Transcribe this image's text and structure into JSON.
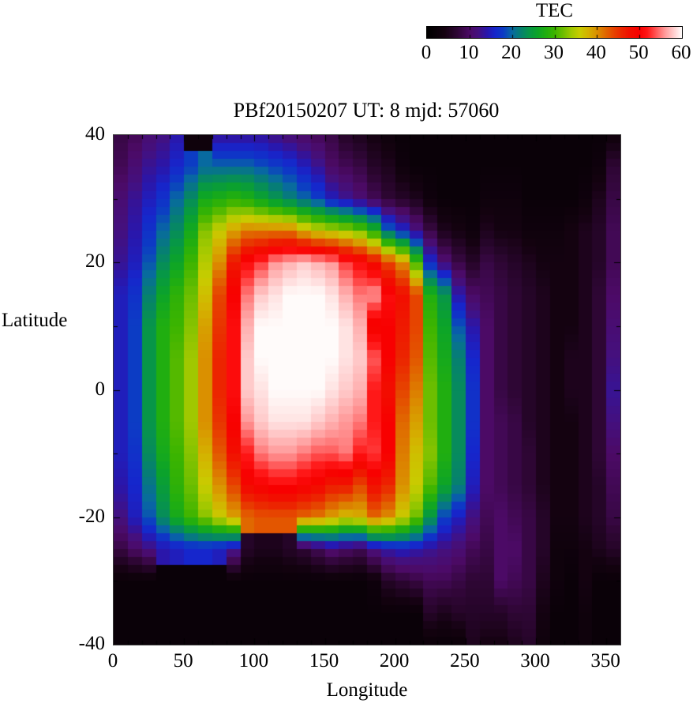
{
  "colorbar": {
    "title": "TEC",
    "min": 0,
    "max": 60,
    "tick_values": [
      0,
      10,
      20,
      30,
      40,
      50,
      60
    ],
    "tick_labels": [
      "0",
      "10",
      "20",
      "30",
      "40",
      "50",
      "60"
    ]
  },
  "plot": {
    "title": "PBf20150207  UT: 8  mjd: 57060",
    "xlabel": "Longitude",
    "ylabel": "Latitude"
  },
  "chart_data": {
    "type": "heatmap",
    "title": "PBf20150207  UT: 8  mjd: 57060",
    "xlabel": "Longitude",
    "ylabel": "Latitude",
    "value_name": "TEC",
    "xlim": [
      0,
      360
    ],
    "ylim": [
      -40,
      40
    ],
    "zlim": [
      0,
      60
    ],
    "grid": "off",
    "legend_position": "top-right colorbar",
    "x_tick_values": [
      0,
      50,
      100,
      150,
      200,
      250,
      300,
      350
    ],
    "x_tick_labels": [
      "0",
      "50",
      "100",
      "150",
      "200",
      "250",
      "300",
      "350"
    ],
    "y_tick_values": [
      40,
      20,
      0,
      -20,
      -40
    ],
    "y_tick_labels": [
      "40",
      "20",
      "0",
      "-20",
      "-40"
    ],
    "minor_tick_step_x": 10,
    "minor_tick_step_y": 10,
    "lon_start": 0,
    "lon_step": 10,
    "lats": [
      40,
      35,
      30,
      25,
      20,
      15,
      10,
      5,
      0,
      -5,
      -10,
      -15,
      -20,
      -25,
      -30,
      -35,
      -40
    ],
    "tec_columns": [
      [
        8,
        9,
        11,
        12,
        13,
        15,
        15,
        15,
        15,
        15,
        15,
        14,
        12,
        8,
        2,
        2,
        2
      ],
      [
        9,
        11,
        13,
        14,
        15,
        17,
        18,
        18,
        18,
        18,
        17,
        16,
        15,
        10,
        2,
        2,
        2
      ],
      [
        11,
        13,
        15,
        17,
        19,
        22,
        24,
        24,
        24,
        24,
        23,
        21,
        19,
        12,
        2,
        2,
        2
      ],
      [
        12,
        14,
        17,
        20,
        23,
        26,
        28,
        28,
        28,
        28,
        27,
        25,
        23,
        14,
        2,
        2,
        2
      ],
      [
        14,
        16,
        20,
        23,
        26,
        29,
        30,
        31,
        31,
        31,
        30,
        29,
        27,
        15,
        2,
        2,
        2
      ],
      [
        3,
        18,
        23,
        27,
        30,
        32,
        33,
        34,
        34,
        34,
        33,
        32,
        30,
        16,
        2,
        2,
        2
      ],
      [
        3,
        20,
        27,
        33,
        35,
        37,
        39,
        40,
        40,
        40,
        38,
        36,
        33,
        16,
        2,
        2,
        2
      ],
      [
        13,
        20,
        28,
        36,
        40,
        44,
        45,
        46,
        46,
        45,
        43,
        40,
        36,
        15,
        2,
        2,
        2
      ],
      [
        13,
        20,
        29,
        39,
        47,
        50,
        51,
        51,
        51,
        50,
        48,
        44,
        39,
        13,
        2,
        2,
        2
      ],
      [
        13,
        20,
        28,
        41,
        51,
        55,
        57,
        58,
        58,
        56,
        52,
        49,
        42,
        6,
        2,
        2,
        2
      ],
      [
        13,
        19,
        26,
        41,
        53,
        58,
        60,
        60,
        59,
        58,
        55,
        50,
        43,
        5,
        2,
        2,
        2
      ],
      [
        12,
        18,
        24,
        41,
        56,
        59,
        60,
        60,
        60,
        59,
        56,
        51,
        43,
        5,
        2,
        2,
        2
      ],
      [
        11,
        17,
        22,
        41,
        57,
        60,
        60,
        60,
        60,
        59,
        56,
        51,
        43,
        6,
        2,
        2,
        2
      ],
      [
        10,
        15,
        20,
        38,
        58,
        60,
        60,
        60,
        60,
        59,
        55,
        50,
        42,
        7,
        2,
        2,
        2
      ],
      [
        9,
        13,
        18,
        36,
        57,
        60,
        60,
        60,
        60,
        58,
        54,
        49,
        41,
        9,
        2,
        2,
        2
      ],
      [
        8,
        10,
        15,
        35,
        56,
        59,
        60,
        60,
        59,
        57,
        54,
        47,
        39,
        11,
        2,
        2,
        2
      ],
      [
        6,
        9,
        13,
        34,
        53,
        57,
        59,
        59,
        58,
        56,
        55,
        47,
        37,
        10,
        2,
        2,
        2
      ],
      [
        5,
        8,
        11,
        32,
        51,
        55,
        57,
        58,
        57,
        55,
        52,
        44,
        38,
        9,
        2,
        2,
        2
      ],
      [
        4,
        6,
        9,
        28,
        48,
        56,
        49,
        54,
        52,
        52,
        53,
        48,
        42,
        12,
        3,
        2,
        2
      ],
      [
        3,
        5,
        7,
        20,
        44,
        51,
        50,
        50,
        48,
        50,
        50,
        46,
        40,
        14,
        6,
        2,
        2
      ],
      [
        2,
        3,
        6,
        16,
        40,
        48,
        47,
        46,
        44,
        42,
        41,
        40,
        36,
        15,
        7,
        2,
        2
      ],
      [
        2,
        2,
        5,
        12,
        30,
        44,
        44,
        43,
        41,
        39,
        37,
        36,
        32,
        14,
        8,
        2,
        2
      ],
      [
        2,
        2,
        3,
        8,
        16,
        28,
        30,
        31,
        32,
        32,
        33,
        31,
        24,
        13,
        9,
        6,
        2
      ],
      [
        2,
        2,
        2,
        5,
        11,
        24,
        26,
        27,
        28,
        28,
        28,
        26,
        18,
        12,
        9,
        5,
        2
      ],
      [
        2,
        2,
        2,
        4,
        8,
        14,
        19,
        22,
        23,
        23,
        23,
        22,
        15,
        11,
        8,
        6,
        2
      ],
      [
        2,
        2,
        2,
        3,
        6,
        10,
        14,
        16,
        17,
        17,
        16,
        15,
        12,
        9,
        7,
        6,
        5
      ],
      [
        2,
        2,
        3,
        5,
        8,
        9,
        10,
        10,
        10,
        10,
        10,
        10,
        9,
        8,
        7,
        6,
        4
      ],
      [
        2,
        2,
        3,
        4,
        7,
        8,
        8,
        8,
        8,
        9,
        9,
        9,
        10,
        10,
        10,
        6,
        4
      ],
      [
        2,
        2,
        3,
        4,
        6,
        7,
        7,
        7,
        7,
        8,
        8,
        8,
        9,
        10,
        9,
        7,
        5
      ],
      [
        2,
        2,
        2,
        3,
        5,
        6,
        6,
        6,
        6,
        6,
        7,
        7,
        8,
        8,
        8,
        7,
        6
      ],
      [
        2,
        2,
        2,
        3,
        4,
        5,
        5,
        5,
        5,
        5,
        5,
        5,
        6,
        6,
        5,
        4,
        3
      ],
      [
        2,
        2,
        2,
        3,
        4,
        4,
        4,
        4,
        4,
        4,
        4,
        4,
        4,
        3,
        3,
        2,
        2
      ],
      [
        2,
        2,
        2,
        4,
        4,
        4,
        4,
        5,
        5,
        4,
        4,
        4,
        4,
        3,
        2,
        2,
        2
      ],
      [
        2,
        2,
        3,
        5,
        5,
        5,
        5,
        5,
        5,
        5,
        5,
        5,
        5,
        4,
        4,
        3,
        3
      ],
      [
        2,
        3,
        5,
        6,
        6,
        7,
        7,
        7,
        7,
        7,
        7,
        6,
        6,
        5,
        2,
        2,
        2
      ],
      [
        3,
        7,
        8,
        9,
        9,
        10,
        11,
        12,
        13,
        12,
        10,
        9,
        8,
        6,
        2,
        2,
        2
      ]
    ],
    "palette_stops": [
      [
        0,
        "#000000"
      ],
      [
        4,
        "#140210"
      ],
      [
        7,
        "#2e0634"
      ],
      [
        10,
        "#4c0a66"
      ],
      [
        12,
        "#44107e"
      ],
      [
        14,
        "#2a16aa"
      ],
      [
        16,
        "#1626cc"
      ],
      [
        18,
        "#0c3cc4"
      ],
      [
        20,
        "#086aa0"
      ],
      [
        22,
        "#068070"
      ],
      [
        24,
        "#079648"
      ],
      [
        26,
        "#0ca428"
      ],
      [
        28,
        "#20ae10"
      ],
      [
        30,
        "#3cb400"
      ],
      [
        32,
        "#6cbe00"
      ],
      [
        34,
        "#a0c800"
      ],
      [
        36,
        "#c8cc00"
      ],
      [
        38,
        "#d4b000"
      ],
      [
        40,
        "#da9000"
      ],
      [
        42,
        "#e06800"
      ],
      [
        44,
        "#e64400"
      ],
      [
        46,
        "#ec2400"
      ],
      [
        48,
        "#f20e00"
      ],
      [
        50,
        "#f80000"
      ],
      [
        52,
        "#ff1818"
      ],
      [
        54,
        "#ff5858"
      ],
      [
        56,
        "#ff9898"
      ],
      [
        58,
        "#ffcaca"
      ],
      [
        60,
        "#fffbfa"
      ]
    ]
  }
}
